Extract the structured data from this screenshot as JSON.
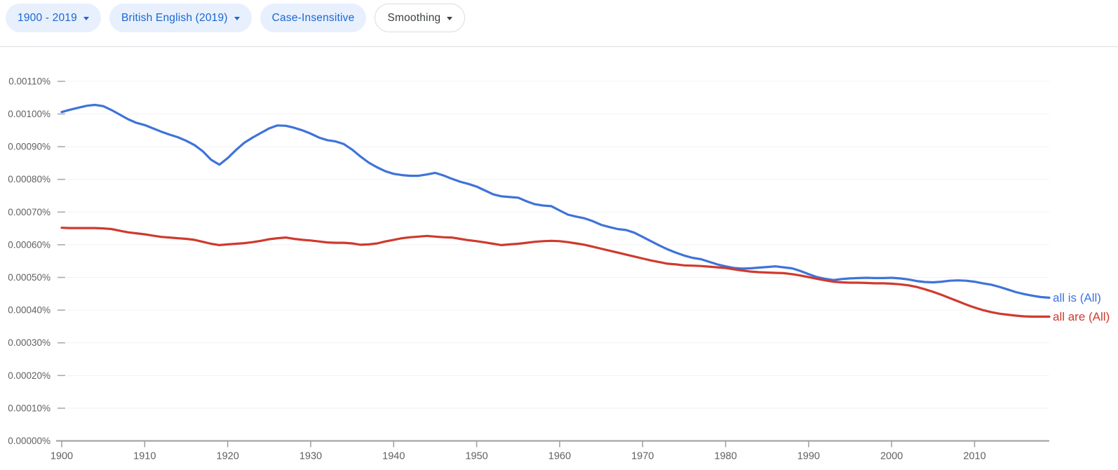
{
  "toolbar": {
    "year_range_label": "1900 - 2019",
    "corpus_label": "British English (2019)",
    "case_label": "Case-Insensitive",
    "smoothing_label": "Smoothing"
  },
  "colors": {
    "chip_background": "#E8F0FE",
    "chip_text": "#1967D2",
    "smoothing_chip_text": "#3C4043",
    "smoothing_chip_border": "#DADCE0",
    "axis_line": "#9E9E9E",
    "axis_text": "#616161",
    "gridline": "#F2F2F2",
    "tick_dash": "#ABABAB",
    "line_blue": "#3E73D9",
    "line_red": "#CF3A2E"
  },
  "chart_data": {
    "type": "line",
    "title": "",
    "xlabel": "",
    "ylabel": "",
    "grid": "horizontal",
    "legend_position": "right-of-line-end",
    "value_unit": "1e-5 percent (e.g. 100.6 means 0.00100600% ~ 0.00101%)",
    "x_years": {
      "start": 1900,
      "end": 2019,
      "step": 1
    },
    "xlim": [
      1900,
      2019
    ],
    "ylim_1e5_percent": [
      0,
      115
    ],
    "x_tick_years": [
      1900,
      1910,
      1920,
      1930,
      1940,
      1950,
      1960,
      1970,
      1980,
      1990,
      2000,
      2010
    ],
    "x_tick_labels": [
      "1900",
      "1910",
      "1920",
      "1930",
      "1940",
      "1950",
      "1960",
      "1970",
      "1980",
      "1990",
      "2000",
      "2010"
    ],
    "y_ticks": [
      {
        "v": 0,
        "label": "0.00000%"
      },
      {
        "v": 10,
        "label": "0.00010%"
      },
      {
        "v": 20,
        "label": "0.00020%"
      },
      {
        "v": 30,
        "label": "0.00030%"
      },
      {
        "v": 40,
        "label": "0.00040%"
      },
      {
        "v": 50,
        "label": "0.00050%"
      },
      {
        "v": 60,
        "label": "0.00060%"
      },
      {
        "v": 70,
        "label": "0.00070%"
      },
      {
        "v": 80,
        "label": "0.00080%"
      },
      {
        "v": 90,
        "label": "0.00090%"
      },
      {
        "v": 100,
        "label": "0.00100%"
      },
      {
        "v": 110,
        "label": "0.00110%"
      }
    ],
    "series": [
      {
        "name": "all is (All)",
        "color": "#3E73D9",
        "values_1e5_percent": [
          100.6,
          101.3,
          101.9,
          102.5,
          102.8,
          102.4,
          101.2,
          99.8,
          98.4,
          97.3,
          96.6,
          95.6,
          94.6,
          93.7,
          92.9,
          91.8,
          90.5,
          88.6,
          86.0,
          84.5,
          86.5,
          89.0,
          91.2,
          92.8,
          94.2,
          95.6,
          96.5,
          96.4,
          95.8,
          95.0,
          94.0,
          92.8,
          92.0,
          91.6,
          90.8,
          89.1,
          87.0,
          85.1,
          83.7,
          82.5,
          81.7,
          81.3,
          81.1,
          81.1,
          81.5,
          82.0,
          81.2,
          80.2,
          79.3,
          78.6,
          77.8,
          76.6,
          75.4,
          74.8,
          74.6,
          74.4,
          73.3,
          72.4,
          72.0,
          71.8,
          70.5,
          69.2,
          68.6,
          68.1,
          67.2,
          66.1,
          65.4,
          64.8,
          64.5,
          63.7,
          62.4,
          61.1,
          59.8,
          58.6,
          57.6,
          56.7,
          56.0,
          55.6,
          54.8,
          54.0,
          53.4,
          52.9,
          52.7,
          52.8,
          53.0,
          53.2,
          53.4,
          53.1,
          52.8,
          52.0,
          51.0,
          50.1,
          49.6,
          49.2,
          49.5,
          49.7,
          49.8,
          49.9,
          49.8,
          49.8,
          49.9,
          49.7,
          49.4,
          48.9,
          48.6,
          48.5,
          48.7,
          49.0,
          49.1,
          49.0,
          48.7,
          48.2,
          47.8,
          47.1,
          46.3,
          45.5,
          44.9,
          44.4,
          44.0,
          43.8
        ]
      },
      {
        "name": "all are (All)",
        "color": "#CF3A2E",
        "values_1e5_percent": [
          65.2,
          65.1,
          65.1,
          65.1,
          65.1,
          65.0,
          64.8,
          64.3,
          63.8,
          63.5,
          63.2,
          62.8,
          62.4,
          62.2,
          62.0,
          61.8,
          61.5,
          60.9,
          60.3,
          59.9,
          60.1,
          60.3,
          60.5,
          60.8,
          61.2,
          61.7,
          62.0,
          62.2,
          61.8,
          61.5,
          61.3,
          61.0,
          60.7,
          60.6,
          60.6,
          60.4,
          60.0,
          60.1,
          60.4,
          61.0,
          61.5,
          62.0,
          62.3,
          62.5,
          62.7,
          62.5,
          62.3,
          62.2,
          61.8,
          61.4,
          61.1,
          60.7,
          60.3,
          59.9,
          60.1,
          60.3,
          60.6,
          60.9,
          61.1,
          61.2,
          61.1,
          60.8,
          60.4,
          60.0,
          59.4,
          58.8,
          58.2,
          57.6,
          57.0,
          56.4,
          55.8,
          55.2,
          54.7,
          54.2,
          54.0,
          53.7,
          53.6,
          53.5,
          53.3,
          53.1,
          52.9,
          52.5,
          52.1,
          51.8,
          51.6,
          51.5,
          51.4,
          51.3,
          51.0,
          50.6,
          50.1,
          49.6,
          49.1,
          48.7,
          48.5,
          48.4,
          48.4,
          48.3,
          48.2,
          48.2,
          48.1,
          47.9,
          47.6,
          47.1,
          46.4,
          45.6,
          44.7,
          43.7,
          42.7,
          41.7,
          40.8,
          40.0,
          39.4,
          38.9,
          38.6,
          38.3,
          38.1,
          38.0,
          38.0,
          38.0
        ]
      }
    ]
  }
}
